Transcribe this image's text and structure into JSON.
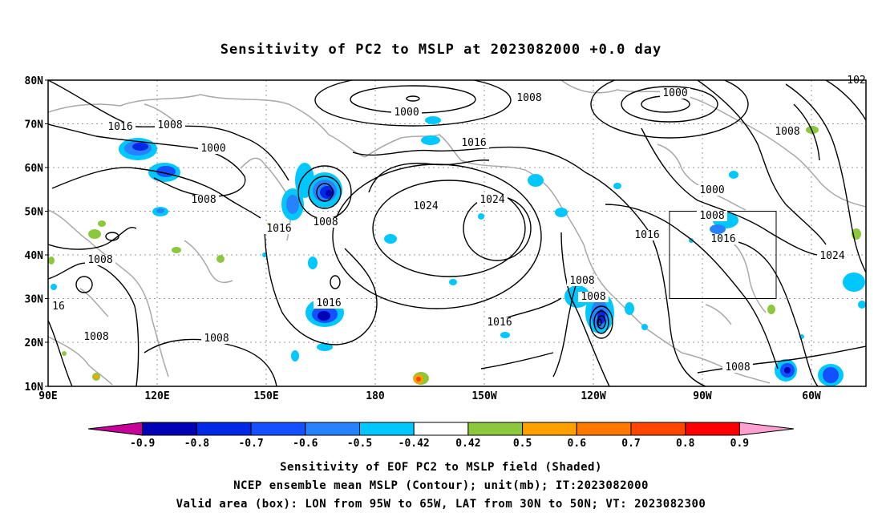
{
  "title": "Sensitivity of PC2 to MSLP at 2023082000 +0.0 day",
  "lat_labels": [
    "80N",
    "70N",
    "60N",
    "50N",
    "40N",
    "30N",
    "20N",
    "10N"
  ],
  "lon_labels": [
    "90E",
    "120E",
    "150E",
    "180",
    "150W",
    "120W",
    "90W",
    "60W"
  ],
  "contour_labels": [
    {
      "text": "1016"
    },
    {
      "text": "1008"
    },
    {
      "text": "1000"
    },
    {
      "text": "1008"
    },
    {
      "text": "1008"
    },
    {
      "text": "1016"
    },
    {
      "text": "1000"
    },
    {
      "text": "1016"
    },
    {
      "text": "1024"
    },
    {
      "text": "1024"
    },
    {
      "text": "1008"
    },
    {
      "text": "1000"
    },
    {
      "text": "1008"
    },
    {
      "text": "1000"
    },
    {
      "text": "1008"
    },
    {
      "text": "1016"
    },
    {
      "text": "1016"
    },
    {
      "text": "1024"
    },
    {
      "text": "1016"
    },
    {
      "text": "1008"
    },
    {
      "text": "1008"
    },
    {
      "text": "1016"
    },
    {
      "text": "1008"
    },
    {
      "text": "1008"
    },
    {
      "text": "1008"
    },
    {
      "text": "1008"
    },
    {
      "text": "16"
    },
    {
      "text": "102"
    }
  ],
  "colorbar": {
    "labels": [
      "-0.9",
      "-0.8",
      "-0.7",
      "-0.6",
      "-0.5",
      "-0.42",
      "0.42",
      "0.5",
      "0.6",
      "0.7",
      "0.8",
      "0.9"
    ],
    "colors": [
      "#c8009a",
      "#0000b4",
      "#0028e6",
      "#1450ff",
      "#2882ff",
      "#00c8ff",
      "#ffffff",
      "#8cc83c",
      "#ffa000",
      "#ff7800",
      "#ff4600",
      "#ff0000",
      "#ffa0d2"
    ]
  },
  "footer": {
    "line1": "Sensitivity of EOF PC2 to MSLP field (Shaded)",
    "line2": "NCEP ensemble mean MSLP (Contour); unit(mb); IT:2023082000",
    "line3": "Valid area (box): LON from 95W to 65W, LAT from 30N to 50N; VT: 2023082300"
  }
}
